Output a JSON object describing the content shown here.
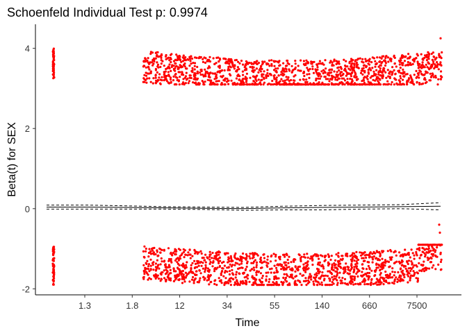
{
  "chart_data": {
    "type": "scatter",
    "title": "Schoenfeld Individual Test p: 0.9974",
    "xlabel": "Time",
    "ylabel": "Beta(t) for SEX",
    "x_ticks": [
      "1.3",
      "1.8",
      "12",
      "34",
      "55",
      "140",
      "660",
      "7500"
    ],
    "y_ticks": [
      -2,
      0,
      2,
      4
    ],
    "ylim": [
      -2.15,
      4.6
    ],
    "grid": false,
    "legend": "none",
    "point_color": "#ff0000",
    "series": [
      {
        "values_description": "scatter of scaled Schoenfeld residuals",
        "bands": [
          {
            "level": "upper",
            "y_min": 3.1,
            "y_max": 4.25
          },
          {
            "level": "lower",
            "y_min": -1.9,
            "y_max": -0.4
          }
        ]
      }
    ],
    "smooth_fit": {
      "x_rank": [
        0.0,
        0.1,
        0.2,
        0.3,
        0.4,
        0.5,
        0.6,
        0.7,
        0.8,
        0.9,
        1.0
      ],
      "fit": [
        0.04,
        0.04,
        0.03,
        0.02,
        0.01,
        0.0,
        0.02,
        0.03,
        0.04,
        0.05,
        0.06
      ],
      "upper": [
        0.09,
        0.09,
        0.07,
        0.05,
        0.04,
        0.03,
        0.06,
        0.08,
        0.09,
        0.1,
        0.15
      ],
      "lower": [
        -0.01,
        -0.01,
        -0.01,
        -0.01,
        -0.02,
        -0.04,
        -0.03,
        -0.03,
        -0.01,
        0.0,
        -0.03
      ]
    }
  }
}
